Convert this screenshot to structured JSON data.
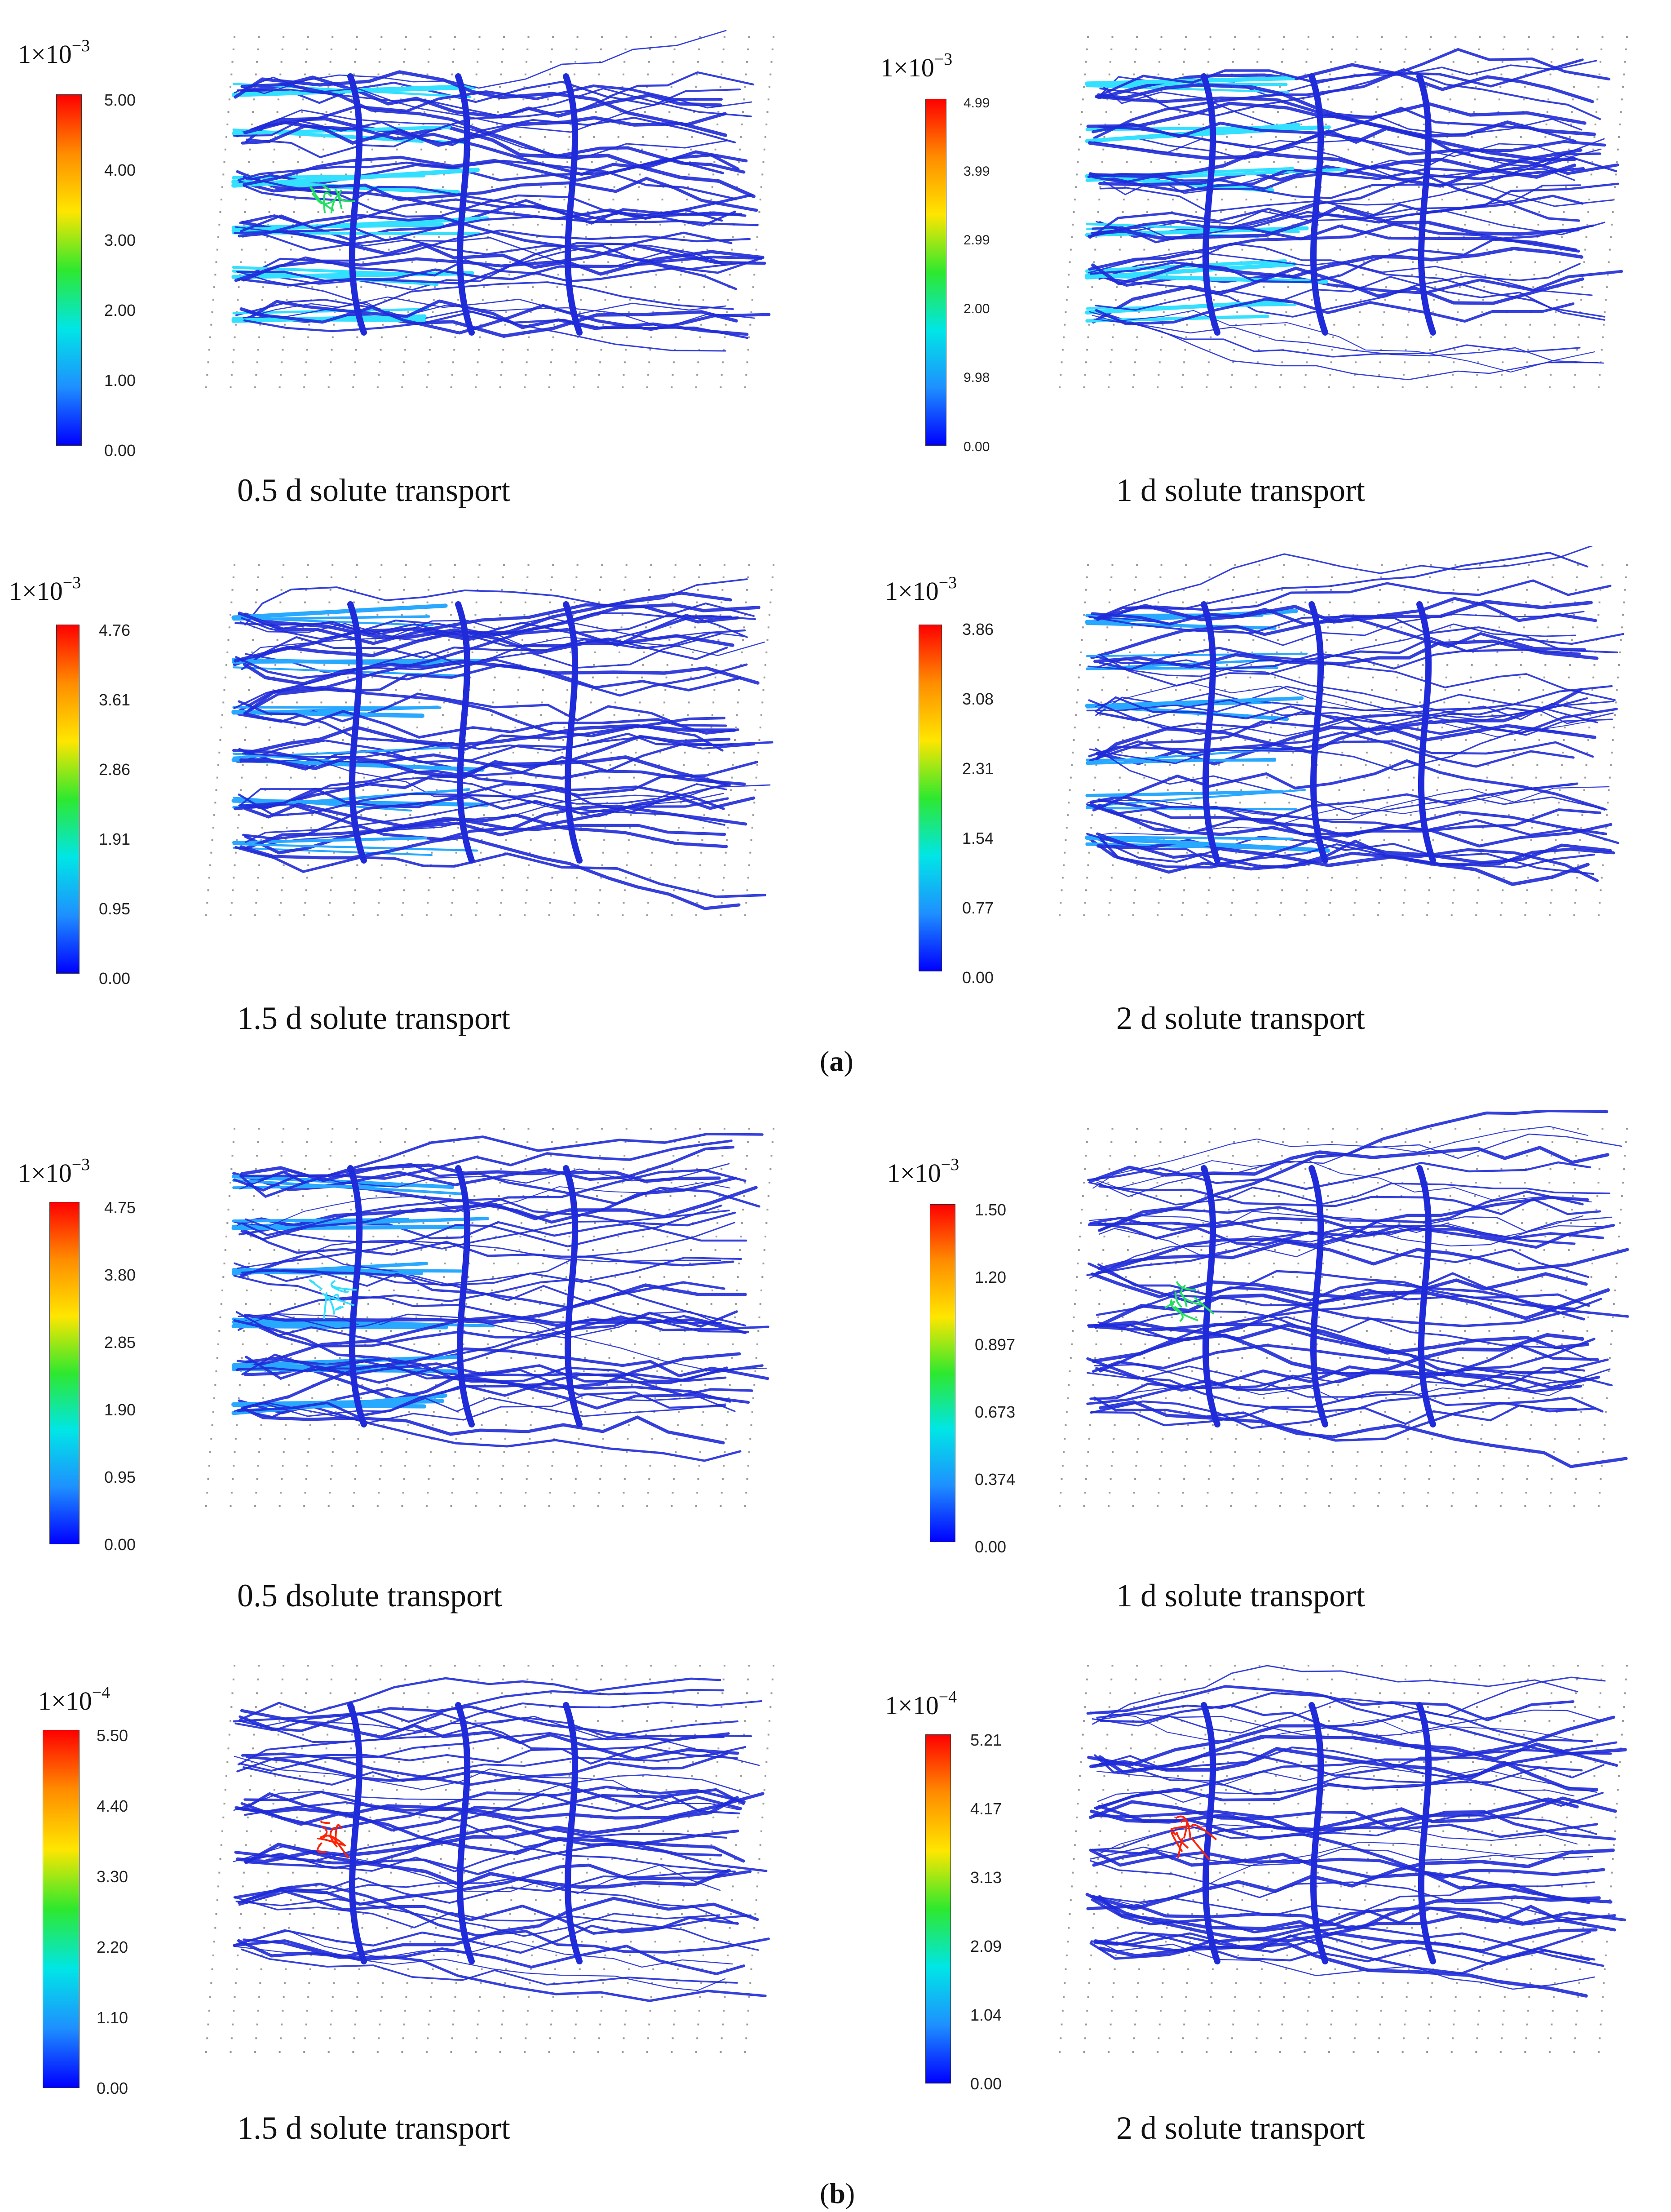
{
  "figure": {
    "label_a": {
      "open": "(",
      "letter": "a",
      "close": ")"
    },
    "label_b": {
      "open": "(",
      "letter": "b",
      "close": ")"
    },
    "panels": [
      {
        "group": "a",
        "caption": "0.5 d solute transport",
        "scale_prefix": "1×10",
        "scale_exp": "−3",
        "ticks": [
          "5.00",
          "4.00",
          "3.00",
          "2.00",
          "1.00",
          "0.00"
        ],
        "hotspot": "green-center"
      },
      {
        "group": "a",
        "caption": "1 d solute transport",
        "scale_prefix": "1×10",
        "scale_exp": "−3",
        "ticks": [
          "4.99",
          "3.99",
          "2.99",
          "2.00",
          "9.98",
          "0.00"
        ],
        "hotspot": "none"
      },
      {
        "group": "a",
        "caption": "1.5 d solute transport",
        "scale_prefix": "1×10",
        "scale_exp": "−3",
        "ticks": [
          "4.76",
          "3.61",
          "2.86",
          "1.91",
          "0.95",
          "0.00"
        ],
        "hotspot": "none"
      },
      {
        "group": "a",
        "caption": "2 d solute transport",
        "scale_prefix": "1×10",
        "scale_exp": "−3",
        "ticks": [
          "3.86",
          "3.08",
          "2.31",
          "1.54",
          "0.77",
          "0.00"
        ],
        "hotspot": "none"
      },
      {
        "group": "b",
        "caption": "0.5 dsolute transport",
        "scale_prefix": "1×10",
        "scale_exp": "−3",
        "ticks": [
          "4.75",
          "3.80",
          "2.85",
          "1.90",
          "0.95",
          "0.00"
        ],
        "hotspot": "cyan-center"
      },
      {
        "group": "b",
        "caption": "1 d solute transport",
        "scale_prefix": "1×10",
        "scale_exp": "−3",
        "ticks": [
          "1.50",
          "1.20",
          "0.897",
          "0.673",
          "0.374",
          "0.00"
        ],
        "hotspot": "green-center"
      },
      {
        "group": "b",
        "caption": "1.5 d solute transport",
        "scale_prefix": "1×10",
        "scale_exp": "−4",
        "ticks": [
          "5.50",
          "4.40",
          "3.30",
          "2.20",
          "1.10",
          "0.00"
        ],
        "hotspot": "red-center"
      },
      {
        "group": "b",
        "caption": "2 d solute transport",
        "scale_prefix": "1×10",
        "scale_exp": "−4",
        "ticks": [
          "5.21",
          "4.17",
          "3.13",
          "2.09",
          "1.04",
          "0.00"
        ],
        "hotspot": "red-center"
      }
    ],
    "colors": {
      "bar_gradient": [
        "#ff0000",
        "#ff8c00",
        "#ffe600",
        "#2ee82e",
        "#00e6e6",
        "#1e90ff",
        "#0000ff"
      ],
      "network_base": "#1f2bd8",
      "network_light": "#29a8ff",
      "network_cyan": "#33e0ff",
      "network_green": "#22e060",
      "grid_dots": "#9a9a9a"
    }
  }
}
